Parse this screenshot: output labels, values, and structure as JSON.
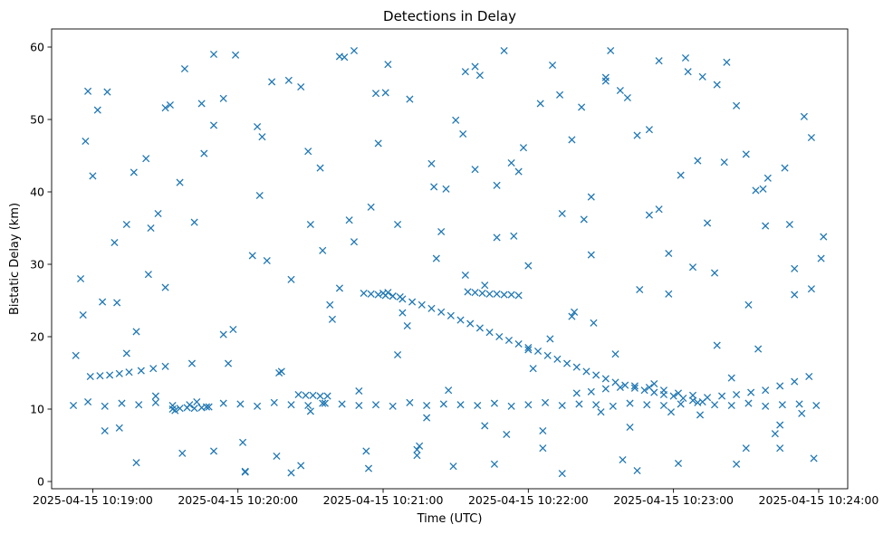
{
  "chart_data": {
    "type": "scatter",
    "title": "Detections in Delay",
    "xlabel": "Time (UTC)",
    "ylabel": "Bistatic Delay (km)",
    "x_ticks": [
      "2025-04-15 10:19:00",
      "2025-04-15 10:20:00",
      "2025-04-15 10:21:00",
      "2025-04-15 10:22:00",
      "2025-04-15 10:23:00",
      "2025-04-15 10:24:00"
    ],
    "y_ticks": [
      "0",
      "10",
      "20",
      "30",
      "40",
      "50",
      "60"
    ],
    "xlim": [
      "2025-04-15 10:18:43",
      "2025-04-15 10:24:12"
    ],
    "ylim": [
      -1,
      62.5
    ],
    "grid": false,
    "marker": "x",
    "color": "#1f77b4",
    "series": [
      {
        "x": [
          "2025-04-15 10:21:00",
          "2025-04-15 10:21:04",
          "2025-04-15 10:21:08",
          "2025-04-15 10:21:12",
          "2025-04-15 10:21:16",
          "2025-04-15 10:21:20",
          "2025-04-15 10:21:24",
          "2025-04-15 10:21:28",
          "2025-04-15 10:21:32",
          "2025-04-15 10:21:36",
          "2025-04-15 10:21:40",
          "2025-04-15 10:21:44",
          "2025-04-15 10:21:48",
          "2025-04-15 10:21:52",
          "2025-04-15 10:21:56",
          "2025-04-15 10:22:00",
          "2025-04-15 10:22:04",
          "2025-04-15 10:22:08",
          "2025-04-15 10:22:12",
          "2025-04-15 10:22:16",
          "2025-04-15 10:22:20",
          "2025-04-15 10:22:24",
          "2025-04-15 10:22:28",
          "2025-04-15 10:22:32",
          "2025-04-15 10:22:36",
          "2025-04-15 10:22:40",
          "2025-04-15 10:22:44",
          "2025-04-15 10:22:48",
          "2025-04-15 10:22:52",
          "2025-04-15 10:22:56",
          "2025-04-15 10:23:00",
          "2025-04-15 10:23:04",
          "2025-04-15 10:23:08",
          "2025-04-15 10:23:12",
          "2025-04-15 10:22:20",
          "2025-04-15 10:22:26",
          "2025-04-15 10:22:32",
          "2025-04-15 10:22:38",
          "2025-04-15 10:22:44",
          "2025-04-15 10:22:50",
          "2025-04-15 10:22:56",
          "2025-04-15 10:23:02",
          "2025-04-15 10:23:08",
          "2025-04-15 10:23:14",
          "2025-04-15 10:23:20",
          "2025-04-15 10:23:26",
          "2025-04-15 10:23:32",
          "2025-04-15 10:23:38",
          "2025-04-15 10:23:44",
          "2025-04-15 10:23:50",
          "2025-04-15 10:23:56",
          "2025-04-15 10:18:59",
          "2025-04-15 10:19:03",
          "2025-04-15 10:19:07",
          "2025-04-15 10:19:11",
          "2025-04-15 10:19:15",
          "2025-04-15 10:19:20",
          "2025-04-15 10:19:25",
          "2025-04-15 10:19:30",
          "2025-04-15 10:19:33",
          "2025-04-15 10:19:36",
          "2025-04-15 10:19:39",
          "2025-04-15 10:19:42",
          "2025-04-15 10:19:45",
          "2025-04-15 10:19:48",
          "2025-04-15 10:20:52",
          "2025-04-15 10:20:55",
          "2025-04-15 10:20:58",
          "2025-04-15 10:21:01",
          "2025-04-15 10:21:04",
          "2025-04-15 10:21:07",
          "2025-04-15 10:21:35",
          "2025-04-15 10:21:38",
          "2025-04-15 10:21:41",
          "2025-04-15 10:21:44",
          "2025-04-15 10:21:47",
          "2025-04-15 10:21:50",
          "2025-04-15 10:21:53",
          "2025-04-15 10:21:56",
          "2025-04-15 10:20:25",
          "2025-04-15 10:20:28",
          "2025-04-15 10:20:31",
          "2025-04-15 10:20:34",
          "2025-04-15 10:20:37",
          "2025-04-15 10:18:52",
          "2025-04-15 10:18:58",
          "2025-04-15 10:19:05",
          "2025-04-15 10:19:12",
          "2025-04-15 10:19:19",
          "2025-04-15 10:19:26",
          "2025-04-15 10:19:33",
          "2025-04-15 10:19:40",
          "2025-04-15 10:19:47",
          "2025-04-15 10:19:54",
          "2025-04-15 10:20:01",
          "2025-04-15 10:20:08",
          "2025-04-15 10:20:15",
          "2025-04-15 10:20:22",
          "2025-04-15 10:20:29",
          "2025-04-15 10:20:36",
          "2025-04-15 10:20:43",
          "2025-04-15 10:20:50",
          "2025-04-15 10:20:57",
          "2025-04-15 10:21:04",
          "2025-04-15 10:21:11",
          "2025-04-15 10:21:18",
          "2025-04-15 10:21:25",
          "2025-04-15 10:21:32",
          "2025-04-15 10:21:39",
          "2025-04-15 10:21:46",
          "2025-04-15 10:21:53",
          "2025-04-15 10:22:00",
          "2025-04-15 10:22:07",
          "2025-04-15 10:22:14",
          "2025-04-15 10:22:21",
          "2025-04-15 10:22:28",
          "2025-04-15 10:22:35",
          "2025-04-15 10:22:42",
          "2025-04-15 10:22:49",
          "2025-04-15 10:22:56",
          "2025-04-15 10:23:03",
          "2025-04-15 10:23:10",
          "2025-04-15 10:23:17",
          "2025-04-15 10:23:24",
          "2025-04-15 10:23:31",
          "2025-04-15 10:23:38",
          "2025-04-15 10:23:45",
          "2025-04-15 10:23:52",
          "2025-04-15 10:23:59",
          "2025-04-15 10:18:53",
          "2025-04-15 10:18:55",
          "2025-04-15 10:18:57",
          "2025-04-15 10:19:02",
          "2025-04-15 10:19:06",
          "2025-04-15 10:19:10",
          "2025-04-15 10:19:14",
          "2025-04-15 10:19:18",
          "2025-04-15 10:19:22",
          "2025-04-15 10:19:26",
          "2025-04-15 10:19:30",
          "2025-04-15 10:19:34",
          "2025-04-15 10:19:38",
          "2025-04-15 10:19:42",
          "2025-04-15 10:19:46",
          "2025-04-15 10:19:50",
          "2025-04-15 10:19:54",
          "2025-04-15 10:19:58",
          "2025-04-15 10:20:02",
          "2025-04-15 10:20:06",
          "2025-04-15 10:20:10",
          "2025-04-15 10:20:14",
          "2025-04-15 10:20:18",
          "2025-04-15 10:20:22",
          "2025-04-15 10:20:26",
          "2025-04-15 10:20:30",
          "2025-04-15 10:20:34",
          "2025-04-15 10:20:38",
          "2025-04-15 10:20:42",
          "2025-04-15 10:20:46",
          "2025-04-15 10:20:50",
          "2025-04-15 10:20:54",
          "2025-04-15 10:20:58",
          "2025-04-15 10:21:02",
          "2025-04-15 10:21:06",
          "2025-04-15 10:21:10",
          "2025-04-15 10:21:14",
          "2025-04-15 10:21:18",
          "2025-04-15 10:21:22",
          "2025-04-15 10:21:26",
          "2025-04-15 10:21:30",
          "2025-04-15 10:21:34",
          "2025-04-15 10:21:38",
          "2025-04-15 10:21:42",
          "2025-04-15 10:21:46",
          "2025-04-15 10:21:50",
          "2025-04-15 10:21:54",
          "2025-04-15 10:21:58",
          "2025-04-15 10:22:02",
          "2025-04-15 10:22:06",
          "2025-04-15 10:22:10",
          "2025-04-15 10:22:14",
          "2025-04-15 10:22:18",
          "2025-04-15 10:22:22",
          "2025-04-15 10:22:26",
          "2025-04-15 10:22:30",
          "2025-04-15 10:22:34",
          "2025-04-15 10:22:38",
          "2025-04-15 10:22:42",
          "2025-04-15 10:22:46",
          "2025-04-15 10:22:50",
          "2025-04-15 10:22:54",
          "2025-04-15 10:22:58",
          "2025-04-15 10:23:02",
          "2025-04-15 10:23:06",
          "2025-04-15 10:23:10",
          "2025-04-15 10:23:14",
          "2025-04-15 10:23:18",
          "2025-04-15 10:23:22",
          "2025-04-15 10:23:26",
          "2025-04-15 10:23:30",
          "2025-04-15 10:23:34",
          "2025-04-15 10:23:38",
          "2025-04-15 10:23:42",
          "2025-04-15 10:23:46",
          "2025-04-15 10:23:50",
          "2025-04-15 10:23:54",
          "2025-04-15 10:23:58",
          "2025-04-15 10:24:02",
          "2025-04-15 10:18:56",
          "2025-04-15 10:19:00",
          "2025-04-15 10:19:05",
          "2025-04-15 10:19:09",
          "2025-04-15 10:19:14",
          "2025-04-15 10:19:18",
          "2025-04-15 10:19:23",
          "2025-04-15 10:19:27",
          "2025-04-15 10:19:32",
          "2025-04-15 10:19:36",
          "2025-04-15 10:19:41",
          "2025-04-15 10:19:45",
          "2025-04-15 10:19:50",
          "2025-04-15 10:19:54",
          "2025-04-15 10:19:59",
          "2025-04-15 10:20:03",
          "2025-04-15 10:20:08",
          "2025-04-15 10:20:12",
          "2025-04-15 10:20:17",
          "2025-04-15 10:20:21",
          "2025-04-15 10:20:26",
          "2025-04-15 10:20:30",
          "2025-04-15 10:20:35",
          "2025-04-15 10:20:39",
          "2025-04-15 10:20:44",
          "2025-04-15 10:20:48",
          "2025-04-15 10:20:53",
          "2025-04-15 10:20:57",
          "2025-04-15 10:21:02",
          "2025-04-15 10:21:06",
          "2025-04-15 10:21:11",
          "2025-04-15 10:21:15",
          "2025-04-15 10:21:20",
          "2025-04-15 10:21:24",
          "2025-04-15 10:21:29",
          "2025-04-15 10:21:33",
          "2025-04-15 10:21:38",
          "2025-04-15 10:21:42",
          "2025-04-15 10:21:47",
          "2025-04-15 10:21:51",
          "2025-04-15 10:21:56",
          "2025-04-15 10:22:00",
          "2025-04-15 10:22:05",
          "2025-04-15 10:22:09",
          "2025-04-15 10:22:14",
          "2025-04-15 10:22:18",
          "2025-04-15 10:22:23",
          "2025-04-15 10:22:27",
          "2025-04-15 10:22:32",
          "2025-04-15 10:22:36",
          "2025-04-15 10:22:41",
          "2025-04-15 10:22:45",
          "2025-04-15 10:22:50",
          "2025-04-15 10:22:54",
          "2025-04-15 10:22:59",
          "2025-04-15 10:23:03",
          "2025-04-15 10:23:08",
          "2025-04-15 10:23:12",
          "2025-04-15 10:23:17",
          "2025-04-15 10:23:21",
          "2025-04-15 10:23:26",
          "2025-04-15 10:23:30",
          "2025-04-15 10:23:35",
          "2025-04-15 10:23:39",
          "2025-04-15 10:23:44",
          "2025-04-15 10:23:48",
          "2025-04-15 10:23:53",
          "2025-04-15 10:23:57",
          "2025-04-15 10:24:01",
          "2025-04-15 10:18:58",
          "2025-04-15 10:19:04",
          "2025-04-15 10:19:11",
          "2025-04-15 10:19:17",
          "2025-04-15 10:19:24",
          "2025-04-15 10:19:30",
          "2025-04-15 10:19:37",
          "2025-04-15 10:19:43",
          "2025-04-15 10:19:50",
          "2025-04-15 10:19:56",
          "2025-04-15 10:20:03",
          "2025-04-15 10:20:09",
          "2025-04-15 10:20:16",
          "2025-04-15 10:20:22",
          "2025-04-15 10:20:29",
          "2025-04-15 10:20:35",
          "2025-04-15 10:20:42",
          "2025-04-15 10:20:48",
          "2025-04-15 10:20:55",
          "2025-04-15 10:21:01",
          "2025-04-15 10:21:08",
          "2025-04-15 10:21:14",
          "2025-04-15 10:21:21",
          "2025-04-15 10:21:27",
          "2025-04-15 10:21:34",
          "2025-04-15 10:21:40",
          "2025-04-15 10:21:47",
          "2025-04-15 10:21:53",
          "2025-04-15 10:22:00",
          "2025-04-15 10:22:06",
          "2025-04-15 10:22:13",
          "2025-04-15 10:22:19",
          "2025-04-15 10:22:26",
          "2025-04-15 10:22:32",
          "2025-04-15 10:22:39",
          "2025-04-15 10:22:45",
          "2025-04-15 10:22:52",
          "2025-04-15 10:22:58",
          "2025-04-15 10:23:05",
          "2025-04-15 10:23:11",
          "2025-04-15 10:23:18",
          "2025-04-15 10:23:24",
          "2025-04-15 10:23:31",
          "2025-04-15 10:23:37",
          "2025-04-15 10:23:44",
          "2025-04-15 10:23:50",
          "2025-04-15 10:23:57"
        ],
        "y": [
          26,
          25.6,
          25.2,
          24.8,
          24.4,
          23.9,
          23.4,
          22.9,
          22.3,
          21.8,
          21.2,
          20.6,
          20.0,
          19.5,
          19.0,
          18.5,
          18.0,
          17.4,
          16.9,
          16.3,
          15.8,
          15.2,
          14.7,
          14.2,
          13.7,
          13.3,
          12.9,
          12.6,
          12.3,
          12.0,
          11.8,
          11.5,
          11.2,
          11.0,
          12.2,
          12.4,
          12.8,
          13.0,
          13.2,
          13.0,
          12.6,
          12.2,
          11.9,
          11.6,
          11.8,
          12.0,
          12.3,
          12.6,
          13.2,
          13.8,
          14.5,
          14.5,
          14.6,
          14.7,
          14.9,
          15.1,
          15.3,
          15.6,
          15.9,
          10.0,
          10.1,
          10.2,
          10.1,
          10.2,
          10.3,
          26,
          25.9,
          25.8,
          25.7,
          25.6,
          25.5,
          26.2,
          26.1,
          26.0,
          25.9,
          25.9,
          25.8,
          25.8,
          25.7,
          12.0,
          11.9,
          11.9,
          11.8,
          11.8,
          10.5,
          11.0,
          10.4,
          10.8,
          10.6,
          10.9,
          10.5,
          10.6,
          10.3,
          10.8,
          10.7,
          10.4,
          10.9,
          10.6,
          10.5,
          10.8,
          10.7,
          10.5,
          10.6,
          10.4,
          10.9,
          10.5,
          10.7,
          10.6,
          10.5,
          10.8,
          10.4,
          10.6,
          10.9,
          10.5,
          10.7,
          10.6,
          10.4,
          10.8,
          10.6,
          10.5,
          10.7,
          10.9,
          10.6,
          10.5,
          10.8,
          10.4,
          10.6,
          10.7,
          10.5,
          17.4,
          28.0,
          47.0,
          51.3,
          53.8,
          24.7,
          35.5,
          20.7,
          44.6,
          11.8,
          26.8,
          9.8,
          57.0,
          35.8,
          45.3,
          59.0,
          52.9,
          21.0,
          5.4,
          31.2,
          47.6,
          55.2,
          15.2,
          1.2,
          54.5,
          9.7,
          43.3,
          24.4,
          58.7,
          36.1,
          12.5,
          1.8,
          46.7,
          57.6,
          35.5,
          21.5,
          3.6,
          8.8,
          30.8,
          40.4,
          49.9,
          56.6,
          43.1,
          27.1,
          2.4,
          59.5,
          33.9,
          46.1,
          15.6,
          4.6,
          57.5,
          37.0,
          22.8,
          51.7,
          39.3,
          9.6,
          59.5,
          54.0,
          7.5,
          26.5,
          48.6,
          37.6,
          31.5,
          2.5,
          56.6,
          44.3,
          35.7,
          18.8,
          57.9,
          51.9,
          4.6,
          40.2,
          35.3,
          6.6,
          43.3,
          25.8,
          50.4,
          3.2,
          33.8,
          23.0,
          42.2,
          7.0,
          33.0,
          17.7,
          2.6,
          28.6,
          37.0,
          52.0,
          41.3,
          16.3,
          52.2,
          4.2,
          20.3,
          58.9,
          1.3,
          49.0,
          30.5,
          15.0,
          55.4,
          2.2,
          35.5,
          10.8,
          22.4,
          58.6,
          33.1,
          4.2,
          53.6,
          26.1,
          17.5,
          52.8,
          4.9,
          43.9,
          34.5,
          2.1,
          48.0,
          57.3,
          7.7,
          40.9,
          6.5,
          42.8,
          29.8,
          52.2,
          19.7,
          1.1,
          47.2,
          36.2,
          21.9,
          55.8,
          17.6,
          53.0,
          1.5,
          36.8,
          58.1,
          9.6,
          42.3,
          29.6,
          55.9,
          28.8,
          44.1,
          2.4,
          45.2,
          18.3,
          41.9,
          7.8,
          35.5,
          9.4,
          26.6,
          30.8,
          53.9,
          24.8,
          7.4,
          42.7,
          35.0,
          51.6,
          3.9,
          11.0,
          49.2,
          16.3,
          1.4,
          39.5,
          3.5,
          27.9,
          45.6,
          31.9,
          26.7,
          59.5,
          37.9,
          53.7,
          23.3,
          4.4,
          40.7,
          12.6,
          28.5,
          56.1,
          33.7,
          44.0,
          18.2,
          7.0,
          53.4,
          23.4,
          31.3,
          55.3,
          3.0,
          47.8,
          13.5,
          25.9,
          58.5,
          9.2,
          54.8,
          14.3,
          24.4,
          40.4,
          4.6,
          29.4,
          47.5
        ]
      }
    ]
  }
}
